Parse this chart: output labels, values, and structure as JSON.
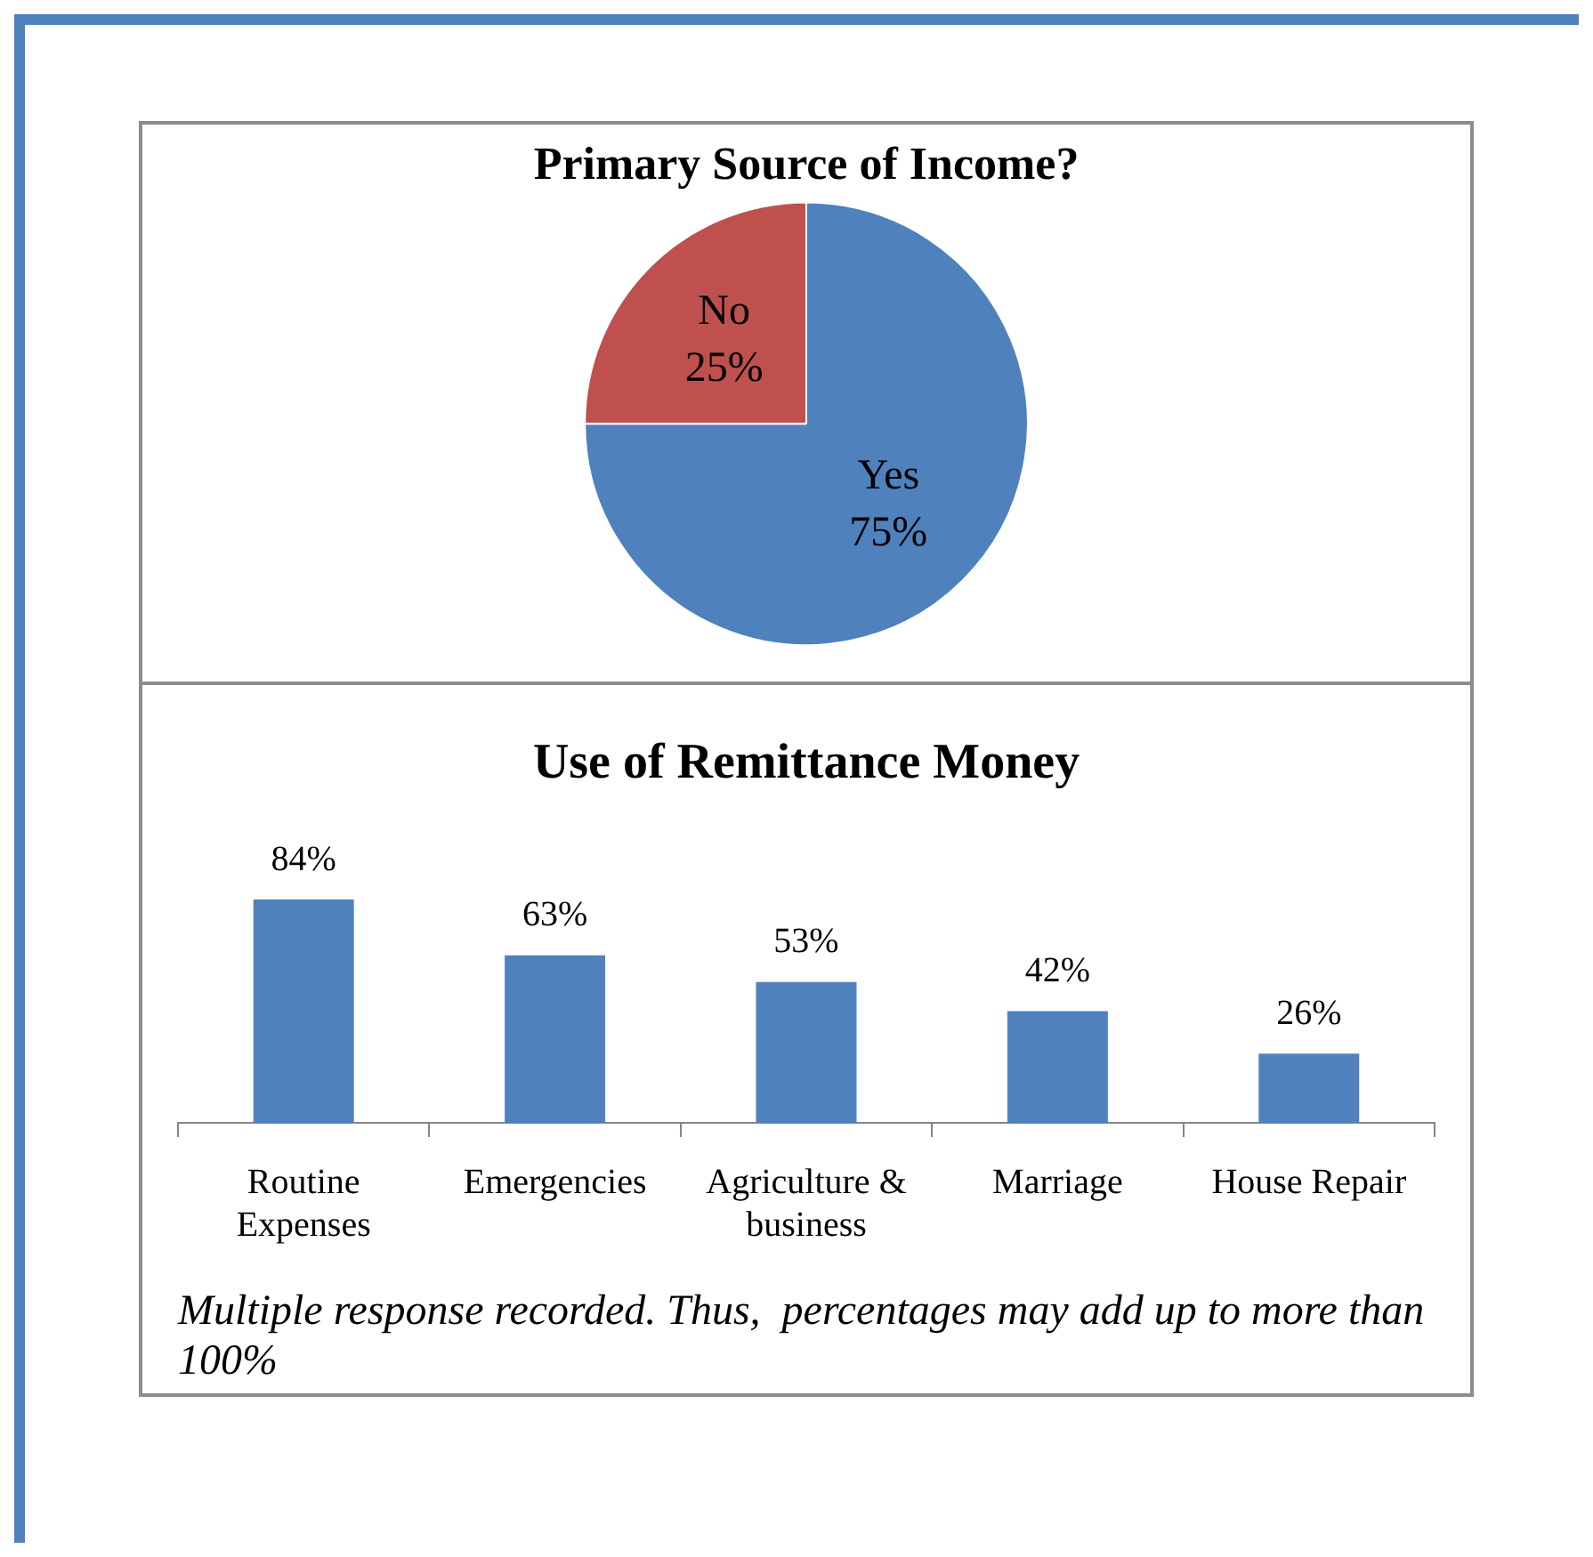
{
  "chart_data": [
    {
      "type": "pie",
      "title": "Primary Source of Income?",
      "categories": [
        "Yes",
        "No"
      ],
      "values": [
        75,
        25
      ],
      "colors": [
        "#4f81bd",
        "#c0504d"
      ],
      "value_labels": [
        "75%",
        "25%"
      ],
      "legend": false
    },
    {
      "type": "bar",
      "title": "Use of Remittance Money",
      "categories": [
        "Routine Expenses",
        "Emergencies",
        "Agriculture & business",
        "Marriage",
        "House Repair"
      ],
      "values": [
        84,
        63,
        53,
        42,
        26
      ],
      "color": "#4f81bd",
      "value_labels": [
        "84%",
        "63%",
        "53%",
        "42%",
        "26%"
      ],
      "legend": false,
      "annotations": [
        "Multiple response recorded. Thus,  percentages may add up to more than 100%"
      ]
    }
  ]
}
